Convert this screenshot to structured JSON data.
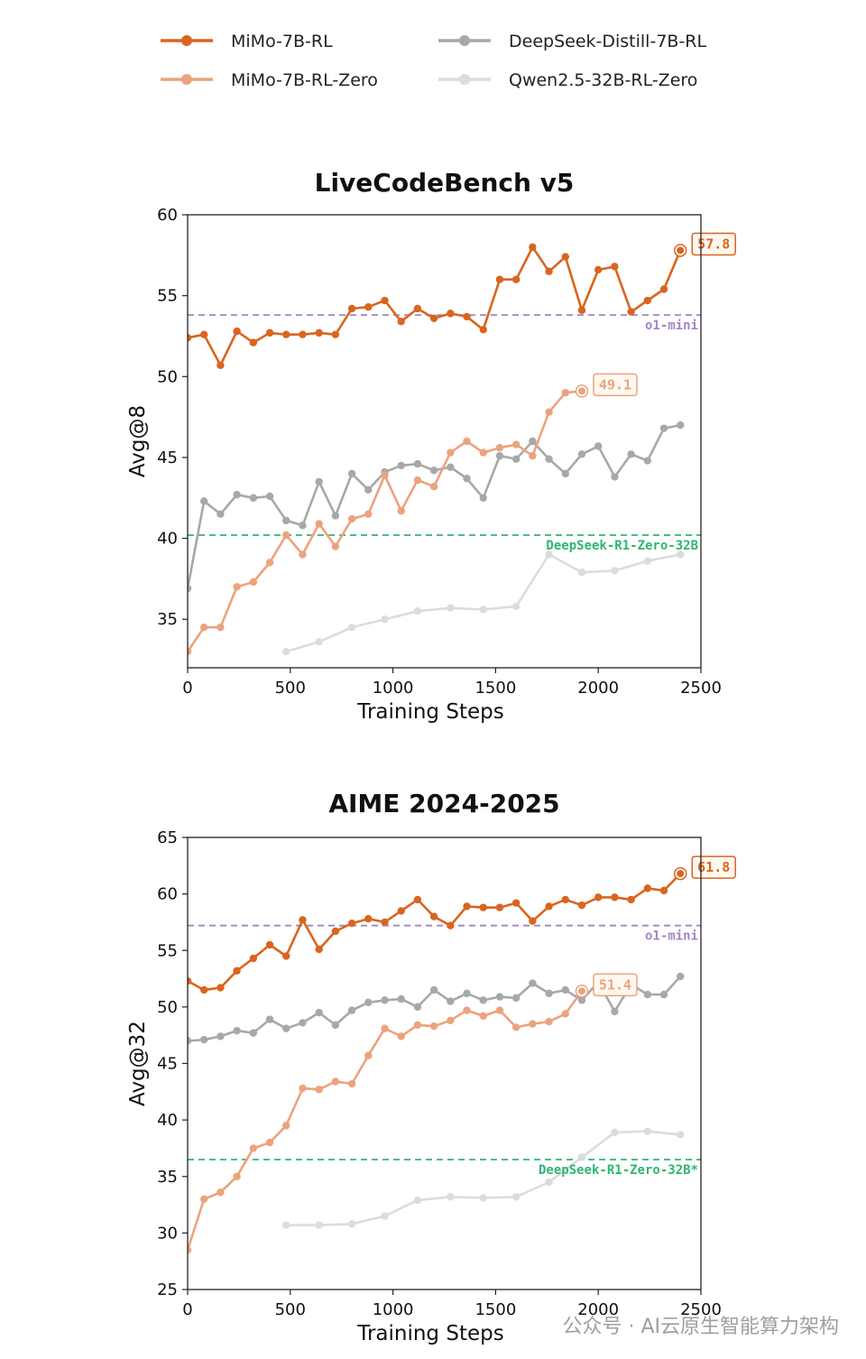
{
  "legend": [
    {
      "label": "MiMo-7B-RL",
      "color": "#d9651f",
      "icon": "line-dot-icon"
    },
    {
      "label": "MiMo-7B-RL-Zero",
      "color": "#eba37e",
      "icon": "line-dot-icon"
    },
    {
      "label": "DeepSeek-Distill-7B-RL",
      "color": "#a8a8a8",
      "icon": "line-dot-icon"
    },
    {
      "label": "Qwen2.5-32B-RL-Zero",
      "color": "#dcdcdc",
      "icon": "line-dot-icon"
    }
  ],
  "watermark": "公众号 · AI云原生智能算力架构",
  "chart_data": [
    {
      "type": "line",
      "title": "LiveCodeBench v5",
      "xlabel": "Training Steps",
      "ylabel": "Avg@8",
      "xlim": [
        0,
        2500
      ],
      "ylim": [
        32,
        60
      ],
      "xticks": [
        0,
        500,
        1000,
        1500,
        2000,
        2500
      ],
      "yticks": [
        35,
        40,
        45,
        50,
        55,
        60
      ],
      "grid": false,
      "reference_lines": [
        {
          "label": "o1-mini",
          "value": 53.8,
          "color": "#a385c4"
        },
        {
          "label": "DeepSeek-R1-Zero-32B",
          "value": 40.2,
          "color": "#2fb573"
        }
      ],
      "end_labels": [
        {
          "series": "MiMo-7B-RL",
          "text": "57.8"
        },
        {
          "series": "MiMo-7B-RL-Zero",
          "text": "49.1"
        }
      ],
      "series": [
        {
          "name": "MiMo-7B-RL",
          "color": "#d9651f",
          "x": [
            0,
            80,
            160,
            240,
            320,
            400,
            480,
            560,
            640,
            720,
            800,
            880,
            960,
            1040,
            1120,
            1200,
            1280,
            1360,
            1440,
            1520,
            1600,
            1680,
            1760,
            1840,
            1920,
            2000,
            2080,
            2160,
            2240,
            2320,
            2400
          ],
          "y": [
            52.4,
            52.6,
            50.7,
            52.8,
            52.1,
            52.7,
            52.6,
            52.6,
            52.7,
            52.6,
            54.2,
            54.3,
            54.7,
            53.4,
            54.2,
            53.6,
            53.9,
            53.7,
            52.9,
            56.0,
            56.0,
            58.0,
            56.5,
            57.4,
            54.1,
            56.6,
            56.8,
            54.0,
            54.7,
            55.4,
            57.8
          ]
        },
        {
          "name": "MiMo-7B-RL-Zero",
          "color": "#eba37e",
          "x": [
            0,
            80,
            160,
            240,
            320,
            400,
            480,
            560,
            640,
            720,
            800,
            880,
            960,
            1040,
            1120,
            1200,
            1280,
            1360,
            1440,
            1520,
            1600,
            1680,
            1760,
            1840,
            1920
          ],
          "y": [
            33.0,
            34.5,
            34.5,
            37.0,
            37.3,
            38.5,
            40.2,
            39.0,
            40.9,
            39.5,
            41.2,
            41.5,
            43.9,
            41.7,
            43.6,
            43.2,
            45.3,
            46.0,
            45.3,
            45.6,
            45.8,
            45.1,
            47.8,
            49.0,
            49.1
          ]
        },
        {
          "name": "DeepSeek-Distill-7B-RL",
          "color": "#a8a8a8",
          "x": [
            0,
            80,
            160,
            240,
            320,
            400,
            480,
            560,
            640,
            720,
            800,
            880,
            960,
            1040,
            1120,
            1200,
            1280,
            1360,
            1440,
            1520,
            1600,
            1680,
            1760,
            1840,
            1920,
            2000,
            2080,
            2160,
            2240,
            2320,
            2400
          ],
          "y": [
            36.9,
            42.3,
            41.5,
            42.7,
            42.5,
            42.6,
            41.1,
            40.8,
            43.5,
            41.4,
            44.0,
            43.0,
            44.1,
            44.5,
            44.6,
            44.2,
            44.4,
            43.7,
            42.5,
            45.1,
            44.9,
            46.0,
            44.9,
            44.0,
            45.2,
            45.7,
            43.8,
            45.2,
            44.8,
            46.8,
            47.0
          ]
        },
        {
          "name": "Qwen2.5-32B-RL-Zero",
          "color": "#dcdcdc",
          "x": [
            480,
            640,
            800,
            960,
            1120,
            1280,
            1440,
            1600,
            1760,
            1920,
            2080,
            2240,
            2400
          ],
          "y": [
            33.0,
            33.6,
            34.5,
            35.0,
            35.5,
            35.7,
            35.6,
            35.8,
            39.0,
            37.9,
            38.0,
            38.6,
            39.0
          ]
        }
      ]
    },
    {
      "type": "line",
      "title": "AIME 2024-2025",
      "xlabel": "Training Steps",
      "ylabel": "Avg@32",
      "xlim": [
        0,
        2500
      ],
      "ylim": [
        25,
        65
      ],
      "xticks": [
        0,
        500,
        1000,
        1500,
        2000,
        2500
      ],
      "yticks": [
        25,
        30,
        35,
        40,
        45,
        50,
        55,
        60,
        65
      ],
      "grid": false,
      "reference_lines": [
        {
          "label": "o1-mini",
          "value": 57.2,
          "color": "#a385c4"
        },
        {
          "label": "DeepSeek-R1-Zero-32B*",
          "value": 36.5,
          "color": "#2fb573"
        }
      ],
      "end_labels": [
        {
          "series": "MiMo-7B-RL",
          "text": "61.8"
        },
        {
          "series": "MiMo-7B-RL-Zero",
          "text": "51.4"
        }
      ],
      "series": [
        {
          "name": "MiMo-7B-RL",
          "color": "#d9651f",
          "x": [
            0,
            80,
            160,
            240,
            320,
            400,
            480,
            560,
            640,
            720,
            800,
            880,
            960,
            1040,
            1120,
            1200,
            1280,
            1360,
            1440,
            1520,
            1600,
            1680,
            1760,
            1840,
            1920,
            2000,
            2080,
            2160,
            2240,
            2320,
            2400
          ],
          "y": [
            52.3,
            51.5,
            51.7,
            53.2,
            54.3,
            55.5,
            54.5,
            57.7,
            55.1,
            56.7,
            57.4,
            57.8,
            57.5,
            58.5,
            59.5,
            58.0,
            57.2,
            58.9,
            58.8,
            58.8,
            59.2,
            57.6,
            58.9,
            59.5,
            59.0,
            59.7,
            59.7,
            59.5,
            60.5,
            60.3,
            61.8
          ]
        },
        {
          "name": "MiMo-7B-RL-Zero",
          "color": "#eba37e",
          "x": [
            0,
            80,
            160,
            240,
            320,
            400,
            480,
            560,
            640,
            720,
            800,
            880,
            960,
            1040,
            1120,
            1200,
            1280,
            1360,
            1440,
            1520,
            1600,
            1680,
            1760,
            1840,
            1920
          ],
          "y": [
            28.5,
            33.0,
            33.6,
            35.0,
            37.5,
            38.0,
            39.5,
            42.8,
            42.7,
            43.4,
            43.2,
            45.7,
            48.1,
            47.4,
            48.4,
            48.3,
            48.8,
            49.7,
            49.2,
            49.7,
            48.2,
            48.5,
            48.7,
            49.4,
            51.4
          ]
        },
        {
          "name": "DeepSeek-Distill-7B-RL",
          "color": "#a8a8a8",
          "x": [
            0,
            80,
            160,
            240,
            320,
            400,
            480,
            560,
            640,
            720,
            800,
            880,
            960,
            1040,
            1120,
            1200,
            1280,
            1360,
            1440,
            1520,
            1600,
            1680,
            1760,
            1840,
            1920,
            2000,
            2080,
            2160,
            2240,
            2320,
            2400
          ],
          "y": [
            47.0,
            47.1,
            47.4,
            47.9,
            47.7,
            48.9,
            48.1,
            48.6,
            49.5,
            48.4,
            49.7,
            50.4,
            50.6,
            50.7,
            50.0,
            51.5,
            50.5,
            51.2,
            50.6,
            50.9,
            50.8,
            52.1,
            51.2,
            51.5,
            50.6,
            52.2,
            49.6,
            52.0,
            51.1,
            51.1,
            52.7
          ]
        },
        {
          "name": "Qwen2.5-32B-RL-Zero",
          "color": "#dcdcdc",
          "x": [
            480,
            640,
            800,
            960,
            1120,
            1280,
            1440,
            1600,
            1760,
            1920,
            2080,
            2240,
            2400
          ],
          "y": [
            30.7,
            30.7,
            30.8,
            31.5,
            32.9,
            33.2,
            33.1,
            33.2,
            34.5,
            36.7,
            38.9,
            39.0,
            38.7
          ]
        }
      ]
    }
  ]
}
